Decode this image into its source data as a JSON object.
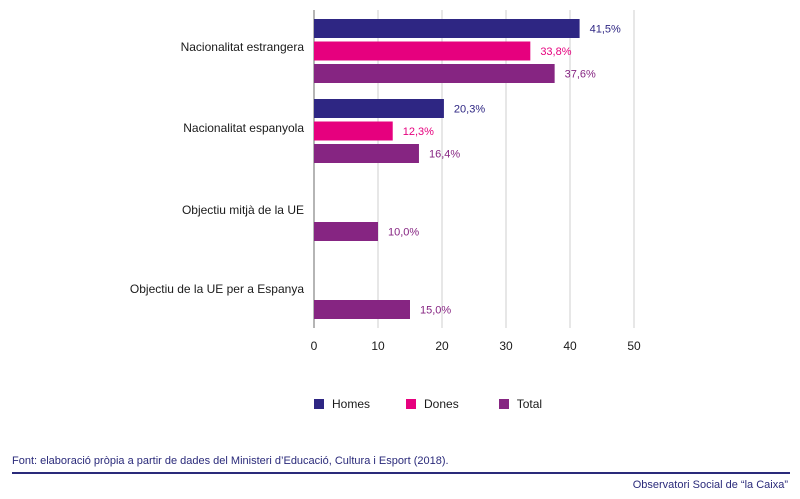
{
  "chart_data": {
    "type": "bar",
    "orientation": "horizontal",
    "categories": [
      "Nacionalitat estrangera",
      "Nacionalitat espanyola",
      "Objectiu mitjà de la UE",
      "Objectiu de la UE per a Espanya"
    ],
    "series": [
      {
        "name": "Homes",
        "color": "#2e2683",
        "values": [
          41.5,
          20.3,
          null,
          null
        ],
        "labels": [
          "41,5%",
          "20,3%",
          "",
          ""
        ]
      },
      {
        "name": "Dones",
        "color": "#e6007e",
        "values": [
          33.8,
          12.3,
          null,
          null
        ],
        "labels": [
          "33,8%",
          "12,3%",
          "",
          ""
        ]
      },
      {
        "name": "Total",
        "color": "#862582",
        "values": [
          37.6,
          16.4,
          10.0,
          15.0
        ],
        "labels": [
          "37,6%",
          "16,4%",
          "10,0%",
          "15,0%"
        ]
      }
    ],
    "xlim": [
      0,
      50
    ],
    "xticks": [
      0,
      10,
      20,
      30,
      40,
      50
    ],
    "xtick_labels": [
      "0",
      "10",
      "20",
      "30",
      "40",
      "50"
    ],
    "grid": true,
    "legend_position": "bottom"
  },
  "legend": {
    "homes": "Homes",
    "dones": "Dones",
    "total": "Total"
  },
  "footer": {
    "source": "Font: elaboració pròpia a partir de dades del Ministeri d’Educació, Cultura i Esport (2018).",
    "brand": "Observatori Social de “la Caixa”"
  }
}
